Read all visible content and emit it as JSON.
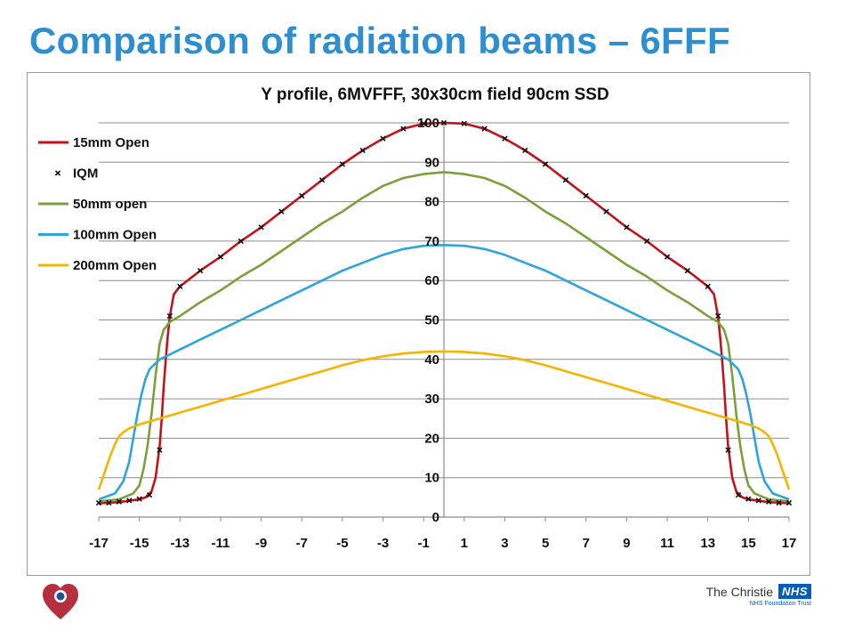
{
  "slide": {
    "title": "Comparison of radiation beams – 6FFF"
  },
  "footer": {
    "logo_icon": "heart-logo-icon",
    "org_name": "The Christie",
    "nhs_label": "NHS",
    "trust_label": "NHS Foundation Trust",
    "nhs_color": "#005eb8"
  },
  "chart_data": {
    "type": "line",
    "title": "Y profile, 6MVFFF, 30x30cm field 90cm SSD",
    "xlabel": "",
    "ylabel": "",
    "xlim": [
      -17,
      17
    ],
    "ylim": [
      0,
      100
    ],
    "xticks": [
      -17,
      -15,
      -13,
      -11,
      -9,
      -7,
      -5,
      -3,
      -1,
      1,
      3,
      5,
      7,
      9,
      11,
      13,
      15,
      17
    ],
    "yticks": [
      0,
      10,
      20,
      30,
      40,
      50,
      60,
      70,
      80,
      90,
      100
    ],
    "grid": true,
    "legend_position": "top-left",
    "series": [
      {
        "name": "15mm Open",
        "color": "#c0141c",
        "style": "line",
        "x": [
          -17,
          -16,
          -15,
          -14.7,
          -14.4,
          -14.2,
          -14.0,
          -13.9,
          -13.8,
          -13.7,
          -13.6,
          -13.5,
          -13.3,
          -13.0,
          -12,
          -11,
          -10,
          -9,
          -8,
          -7,
          -6,
          -5,
          -4,
          -3,
          -2,
          -1,
          0,
          1,
          2,
          3,
          4,
          5,
          6,
          7,
          8,
          9,
          10,
          11,
          12,
          13.0,
          13.3,
          13.5,
          13.6,
          13.7,
          13.8,
          13.9,
          14.0,
          14.2,
          14.4,
          14.7,
          15,
          16,
          17
        ],
        "y": [
          3.5,
          3.8,
          4.5,
          5,
          6.5,
          10,
          18,
          25,
          33,
          40,
          46,
          51,
          56.5,
          58.5,
          62.5,
          66,
          70,
          73.5,
          77.5,
          81.5,
          85.5,
          89.5,
          93,
          96,
          98.5,
          99.8,
          100,
          99.8,
          98.5,
          96,
          93,
          89.5,
          85.5,
          81.5,
          77.5,
          73.5,
          70,
          66,
          62.5,
          58.5,
          56.5,
          51,
          46,
          40,
          33,
          25,
          18,
          10,
          6.5,
          5,
          4.5,
          3.8,
          3.5
        ]
      },
      {
        "name": "50mm open",
        "color": "#7aa03c",
        "style": "line",
        "x": [
          -17,
          -16,
          -15.3,
          -15.0,
          -14.8,
          -14.6,
          -14.4,
          -14.3,
          -14.2,
          -14.1,
          -14.0,
          -13.8,
          -13.5,
          -13,
          -12,
          -11,
          -10,
          -9,
          -8,
          -7,
          -6,
          -5,
          -4,
          -3,
          -2,
          -1,
          0,
          1,
          2,
          3,
          4,
          5,
          6,
          7,
          8,
          9,
          10,
          11,
          12,
          13,
          13.5,
          13.8,
          14.0,
          14.1,
          14.2,
          14.3,
          14.4,
          14.6,
          14.8,
          15.0,
          15.3,
          16,
          17
        ],
        "y": [
          4,
          4.5,
          6,
          8,
          12,
          18,
          26,
          31,
          36,
          40,
          44,
          47.5,
          49.5,
          51,
          54.5,
          57.5,
          61,
          64,
          67.5,
          71,
          74.5,
          77.5,
          81,
          84,
          86,
          87,
          87.5,
          87,
          86,
          84,
          81,
          77.5,
          74.5,
          71,
          67.5,
          64,
          61,
          57.5,
          54.5,
          51,
          49.5,
          47.5,
          44,
          40,
          36,
          31,
          26,
          18,
          12,
          8,
          6,
          4.5,
          4
        ]
      },
      {
        "name": "100mm Open",
        "color": "#2ea4dc",
        "style": "line",
        "x": [
          -17,
          -16.2,
          -15.8,
          -15.5,
          -15.3,
          -15.1,
          -14.9,
          -14.7,
          -14.5,
          -14.2,
          -14,
          -13,
          -12,
          -11,
          -10,
          -9,
          -8,
          -7,
          -6,
          -5,
          -4,
          -3,
          -2,
          -1,
          0,
          1,
          2,
          3,
          4,
          5,
          6,
          7,
          8,
          9,
          10,
          11,
          12,
          13,
          14,
          14.2,
          14.5,
          14.7,
          14.9,
          15.1,
          15.3,
          15.5,
          15.8,
          16.2,
          17
        ],
        "y": [
          4.5,
          6,
          9,
          14,
          20,
          26,
          31,
          35,
          37.5,
          39,
          40,
          42.5,
          45,
          47.5,
          50,
          52.5,
          55,
          57.5,
          60,
          62.5,
          64.5,
          66.5,
          68,
          68.8,
          69,
          68.8,
          68,
          66.5,
          64.5,
          62.5,
          60,
          57.5,
          55,
          52.5,
          50,
          47.5,
          45,
          42.5,
          40,
          39,
          37.5,
          35,
          31,
          26,
          20,
          14,
          9,
          6,
          4.5
        ]
      },
      {
        "name": "200mm Open",
        "color": "#f5b400",
        "style": "line",
        "x": [
          -17,
          -16.8,
          -16.6,
          -16.4,
          -16.2,
          -16.0,
          -15.8,
          -15.5,
          -15,
          -14,
          -13,
          -12,
          -11,
          -10,
          -9,
          -8,
          -7,
          -6,
          -5,
          -4,
          -3,
          -2,
          -1,
          0,
          1,
          2,
          3,
          4,
          5,
          6,
          7,
          8,
          9,
          10,
          11,
          12,
          13,
          14,
          15,
          15.5,
          15.8,
          16.0,
          16.2,
          16.4,
          16.6,
          16.8,
          17
        ],
        "y": [
          7,
          10,
          13,
          16,
          18.5,
          20.5,
          21.5,
          22.5,
          23.5,
          25,
          26.5,
          28,
          29.5,
          31,
          32.5,
          34,
          35.5,
          37,
          38.5,
          39.8,
          40.8,
          41.5,
          41.9,
          42,
          41.9,
          41.5,
          40.8,
          39.8,
          38.5,
          37,
          35.5,
          34,
          32.5,
          31,
          29.5,
          28,
          26.5,
          25,
          23.5,
          22.5,
          21.5,
          20.5,
          18.5,
          16,
          13,
          10,
          7
        ]
      },
      {
        "name": "IQM",
        "color": "#111111",
        "style": "markers",
        "marker": "x",
        "x": [
          -17,
          -16.5,
          -16,
          -15.5,
          -15,
          -14.5,
          -14,
          -13.5,
          -13,
          -12,
          -11,
          -10,
          -9,
          -8,
          -7,
          -6,
          -5,
          -4,
          -3,
          -2,
          -1,
          0,
          1,
          2,
          3,
          4,
          5,
          6,
          7,
          8,
          9,
          10,
          11,
          12,
          13,
          13.5,
          14,
          14.5,
          15,
          15.5,
          16,
          16.5,
          17
        ],
        "y": [
          3.6,
          3.6,
          3.9,
          4.2,
          4.6,
          5.6,
          17,
          51,
          58.5,
          62.5,
          66,
          70,
          73.5,
          77.5,
          81.5,
          85.5,
          89.5,
          93,
          96,
          98.5,
          99.8,
          100,
          99.8,
          98.5,
          96,
          93,
          89.5,
          85.5,
          81.5,
          77.5,
          73.5,
          70,
          66,
          62.5,
          58.5,
          51,
          17,
          5.6,
          4.6,
          4.2,
          3.9,
          3.6,
          3.6
        ]
      }
    ]
  }
}
